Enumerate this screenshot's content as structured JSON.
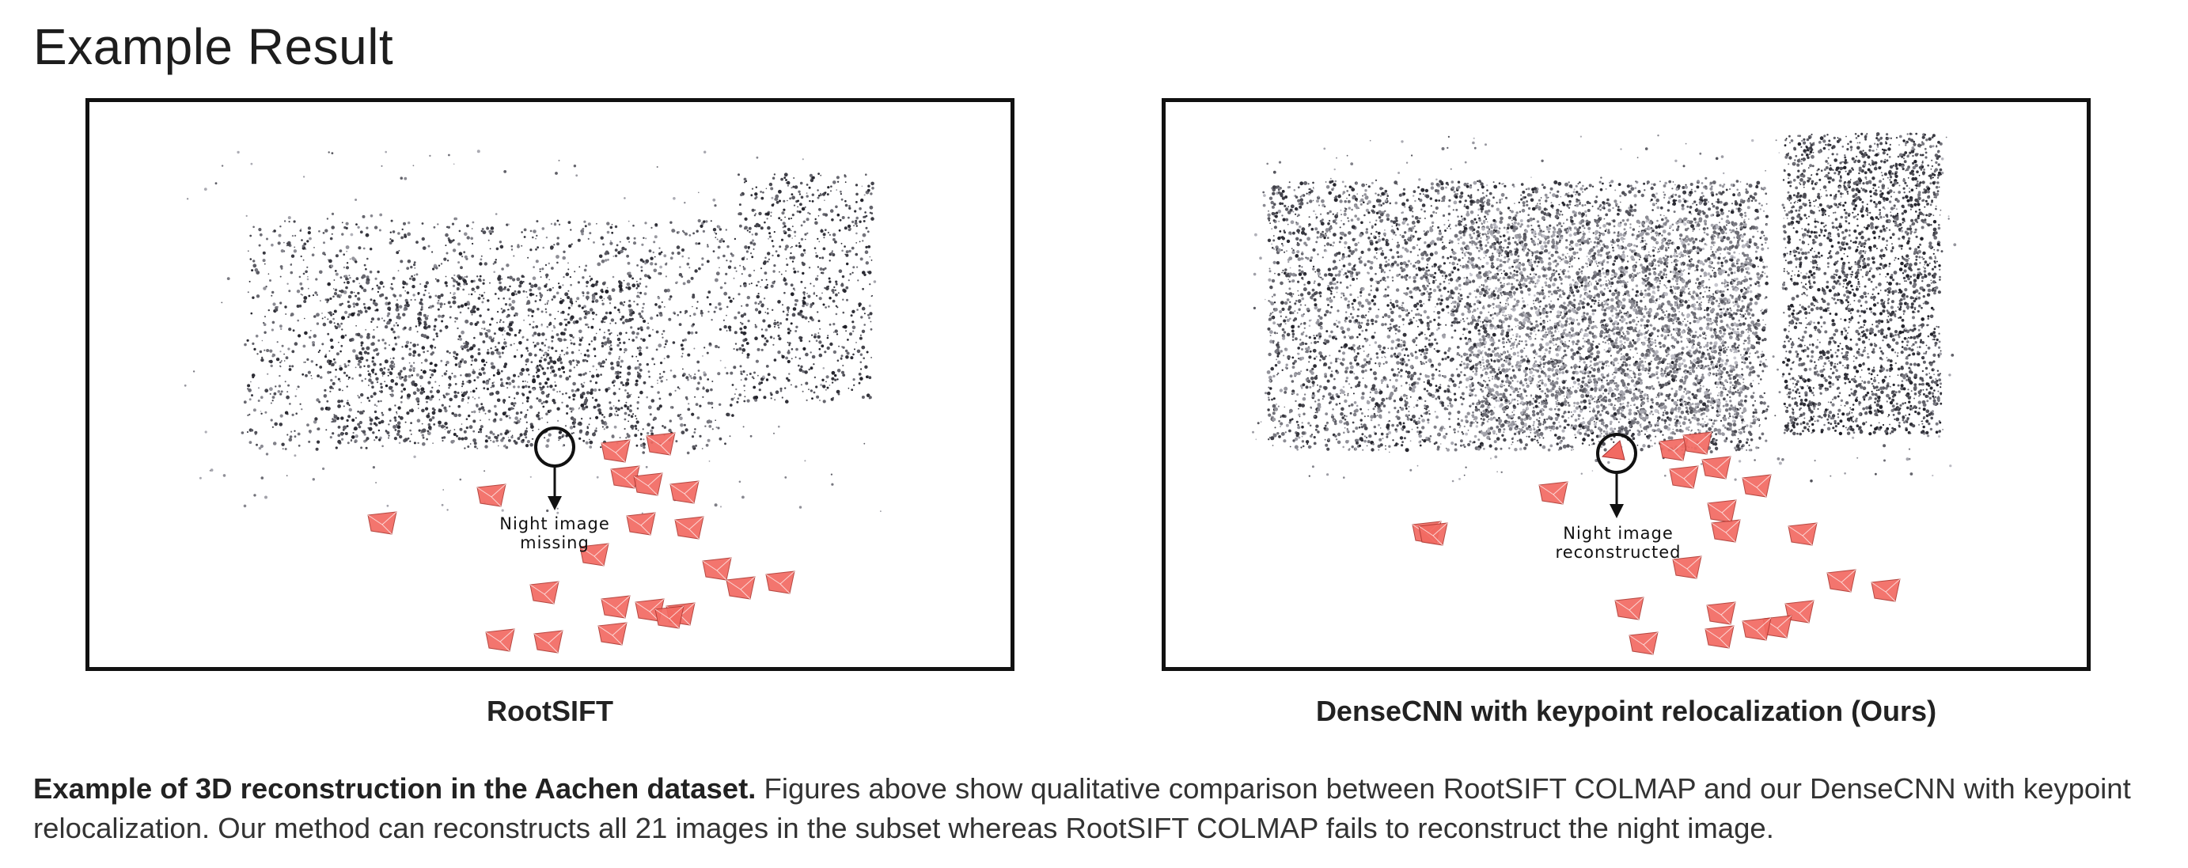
{
  "heading": "Example Result",
  "figures": [
    {
      "caption": "RootSIFT",
      "annotation_line1": "Night image",
      "annotation_line2": "missing"
    },
    {
      "caption": "DenseCNN with keypoint relocalization (Ours)",
      "annotation_line1": "Night image",
      "annotation_line2": "reconstructed"
    }
  ],
  "description": {
    "bold": "Example of 3D reconstruction in the Aachen dataset.",
    "text": " Figures above show qualitative comparison between RootSIFT COLMAP and our DenseCNN with keypoint relocalization. Our method can reconstructs all 21 images in the subset whereas RootSIFT COLMAP fails to reconstruct the night image."
  },
  "colors": {
    "camera": "#f26a62",
    "points": "#3a3a3a",
    "frame": "#111111"
  }
}
